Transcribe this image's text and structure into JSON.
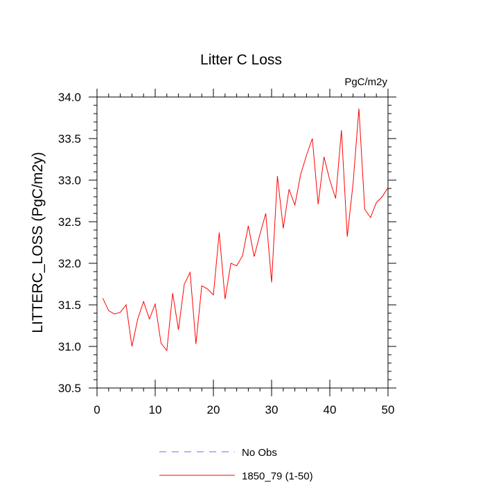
{
  "chart_data": {
    "type": "line",
    "title": "Litter C Loss",
    "units_label": "PgC/m2y",
    "xlabel": "",
    "ylabel": "LITTERC_LOSS  (PgC/m2y)",
    "xlim": [
      0,
      50
    ],
    "ylim": [
      30.5,
      34.0
    ],
    "x_ticks": [
      0,
      10,
      20,
      30,
      40,
      50
    ],
    "y_ticks": [
      30.5,
      31.0,
      31.5,
      32.0,
      32.5,
      33.0,
      33.5,
      34.0
    ],
    "x_tick_labels": [
      "0",
      "10",
      "20",
      "30",
      "40",
      "50"
    ],
    "y_tick_labels": [
      "30.5",
      "31.0",
      "31.5",
      "32.0",
      "32.5",
      "33.0",
      "33.5",
      "34.0"
    ],
    "grid": false,
    "legend_position": "bottom-center",
    "series": [
      {
        "name": "No Obs",
        "color": "#6666ff",
        "style": "dashed",
        "x": [],
        "values": []
      },
      {
        "name": "1850_79 (1-50)",
        "color": "#ff0000",
        "style": "solid",
        "x": [
          1,
          2,
          3,
          4,
          5,
          6,
          7,
          8,
          9,
          10,
          11,
          12,
          13,
          14,
          15,
          16,
          17,
          18,
          19,
          20,
          21,
          22,
          23,
          24,
          25,
          26,
          27,
          28,
          29,
          30,
          31,
          32,
          33,
          34,
          35,
          36,
          37,
          38,
          39,
          40,
          41,
          42,
          43,
          44,
          45,
          46,
          47,
          48,
          49,
          50
        ],
        "values": [
          31.58,
          31.43,
          31.39,
          31.41,
          31.5,
          31.0,
          31.33,
          31.54,
          31.33,
          31.51,
          31.04,
          30.95,
          31.64,
          31.2,
          31.75,
          31.89,
          31.03,
          31.73,
          31.69,
          31.62,
          32.37,
          31.57,
          32.0,
          31.97,
          32.09,
          32.45,
          32.08,
          32.35,
          32.6,
          31.77,
          33.05,
          32.42,
          32.89,
          32.7,
          33.07,
          33.3,
          33.5,
          32.71,
          33.28,
          33.0,
          32.78,
          33.6,
          32.32,
          32.96,
          33.86,
          32.65,
          32.55,
          32.73,
          32.8,
          32.91
        ]
      }
    ]
  }
}
